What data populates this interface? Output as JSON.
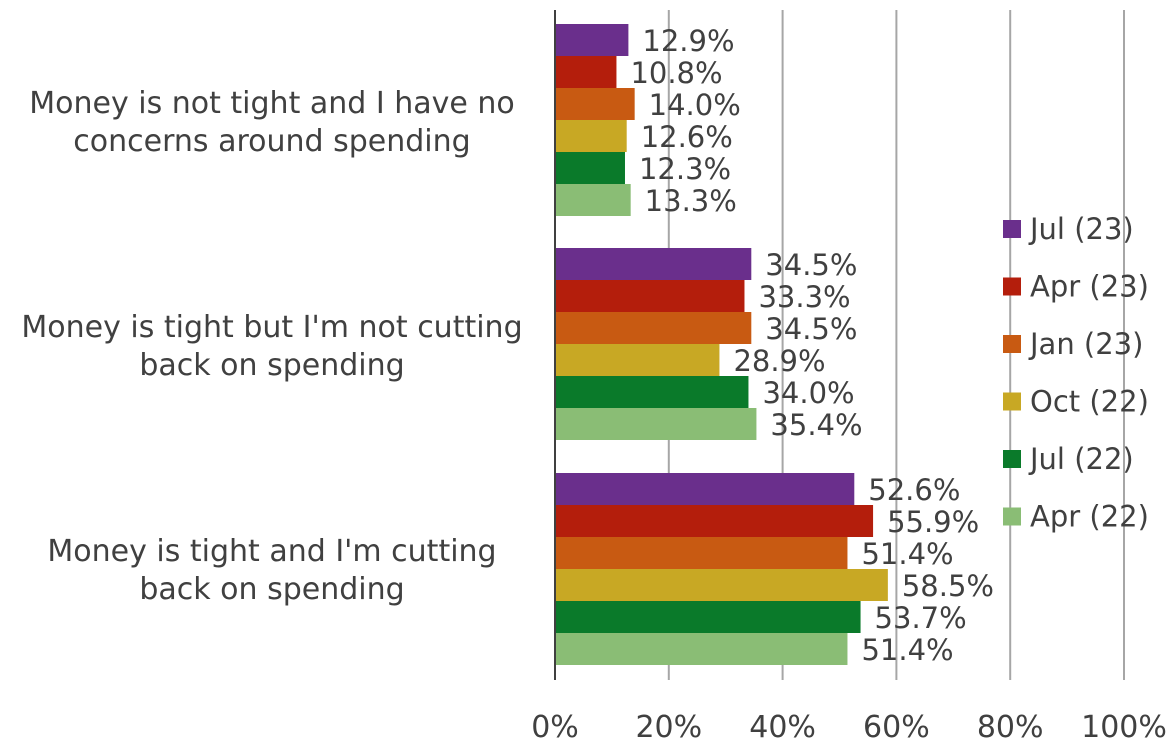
{
  "chart_data": {
    "type": "bar",
    "orientation": "horizontal",
    "title": "",
    "xlabel": "",
    "ylabel": "",
    "xlim": [
      0,
      100
    ],
    "x_ticks": [
      "0%",
      "20%",
      "40%",
      "60%",
      "80%",
      "100%"
    ],
    "x_tick_values": [
      0,
      20,
      40,
      60,
      80,
      100
    ],
    "grid": true,
    "legend_position": "right",
    "value_suffix": "%",
    "categories": [
      [
        "Money is not tight and I have no",
        "concerns around spending"
      ],
      [
        "Money is tight but I'm not cutting",
        "back on spending"
      ],
      [
        "Money is tight and I'm cutting",
        "back on spending"
      ]
    ],
    "series": [
      {
        "name": "Jul (23)",
        "color": "#6a2f8c",
        "values": [
          12.9,
          34.5,
          52.6
        ],
        "labels": [
          "12.9%",
          "34.5%",
          "52.6%"
        ]
      },
      {
        "name": "Apr (23)",
        "color": "#b41e0c",
        "values": [
          10.8,
          33.3,
          55.9
        ],
        "labels": [
          "10.8%",
          "33.3%",
          "55.9%"
        ]
      },
      {
        "name": "Jan (23)",
        "color": "#c85a12",
        "values": [
          14.0,
          34.5,
          51.4
        ],
        "labels": [
          "14.0%",
          "34.5%",
          "51.4%"
        ]
      },
      {
        "name": "Oct (22)",
        "color": "#c8a824",
        "values": [
          12.6,
          28.9,
          58.5
        ],
        "labels": [
          "12.6%",
          "28.9%",
          "58.5%"
        ]
      },
      {
        "name": "Jul (22)",
        "color": "#0a7a2a",
        "values": [
          12.3,
          34.0,
          53.7
        ],
        "labels": [
          "12.3%",
          "34.0%",
          "53.7%"
        ]
      },
      {
        "name": "Apr (22)",
        "color": "#8abd75",
        "values": [
          13.3,
          35.4,
          51.4
        ],
        "labels": [
          "13.3%",
          "35.4%",
          "51.4%"
        ]
      }
    ]
  }
}
